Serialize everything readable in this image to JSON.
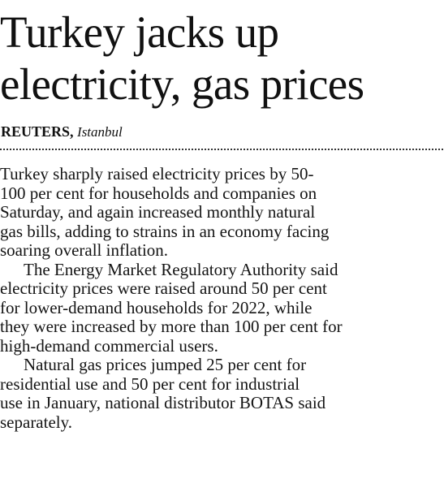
{
  "article": {
    "headline_lines": [
      "Turkey jacks up",
      "electricity, gas prices"
    ],
    "byline": {
      "agency": "REUTERS,",
      "place": "Istanbul"
    },
    "paragraphs": [
      {
        "lines": [
          "Turkey sharply raised electricity prices by 50-",
          "100 per cent for households and companies on",
          "Saturday, and again increased monthly natural",
          "gas bills, adding to strains in an economy facing",
          "soaring overall inflation."
        ]
      },
      {
        "lines": [
          "The Energy Market Regulatory Authority said",
          "electricity prices were raised around 50 per cent",
          "for lower-demand households for 2022, while",
          "they were increased by more than 100 per cent for",
          "high-demand commercial users."
        ]
      },
      {
        "lines": [
          "Natural gas prices jumped 25 per cent for",
          "residential use and 50 per cent for industrial",
          "use in January, national distributor BOTAS said",
          "separately."
        ]
      }
    ]
  }
}
